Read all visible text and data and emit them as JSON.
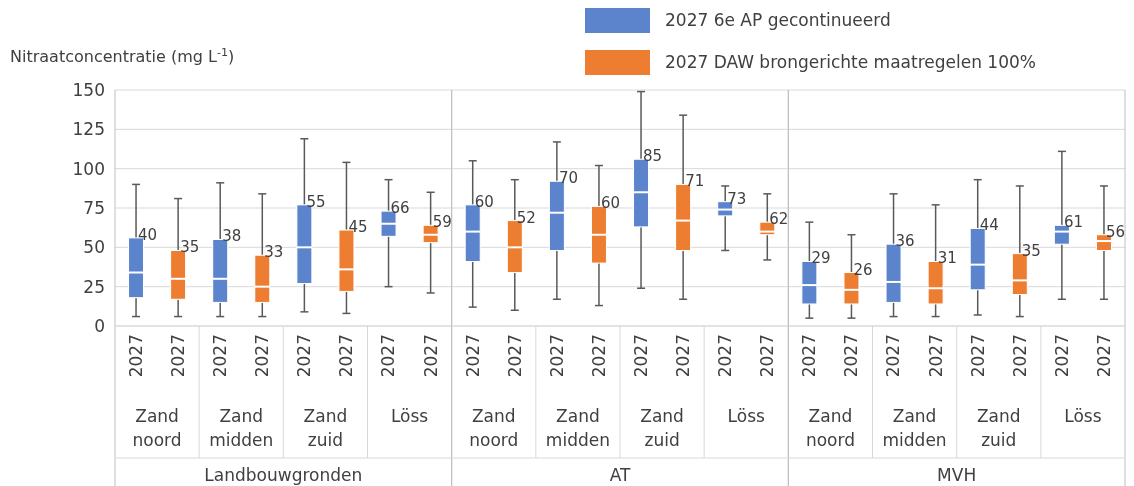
{
  "chart_data": [
    {
      "type": "box",
      "ylabel": "Nitraatconcentratie (mg L$^{-1}$)",
      "xlabel": "Landbouwgronden",
      "categories": [
        "Zand noord",
        "Zand midden",
        "Zand zuid",
        "Löss"
      ],
      "ylim": [
        0,
        150
      ],
      "yticks": [
        0,
        25,
        50,
        75,
        100,
        125,
        150
      ],
      "grid": "y",
      "legend": "top right",
      "annotations": [
        "2027",
        "2027",
        "2027",
        "2027",
        "2027",
        "2027",
        "2027",
        "2027"
      ],
      "series": [
        {
          "name": "2027 6e AP gecontinueerd",
          "color": "#5b84cc",
          "value_labels": [
            "40",
            "38",
            "55",
            "66"
          ],
          "boxes": [
            {
              "low": 6,
              "q1": 18,
              "median": 34,
              "q3": 56,
              "high": 90
            },
            {
              "low": 6,
              "q1": 15,
              "median": 30,
              "q3": 55,
              "high": 91
            },
            {
              "low": 9,
              "q1": 27,
              "median": 50,
              "q3": 77,
              "high": 119
            },
            {
              "low": 25,
              "q1": 57,
              "median": 65,
              "q3": 73,
              "high": 93
            }
          ]
        },
        {
          "name": "2027 DAW brongerichte maatregelen 100%",
          "color": "#ed7d31",
          "value_labels": [
            "35",
            "33",
            "45",
            "59"
          ],
          "boxes": [
            {
              "low": 6,
              "q1": 17,
              "median": 30,
              "q3": 48,
              "high": 81
            },
            {
              "low": 6,
              "q1": 15,
              "median": 25,
              "q3": 45,
              "high": 84
            },
            {
              "low": 8,
              "q1": 22,
              "median": 36,
              "q3": 61,
              "high": 104
            },
            {
              "low": 21,
              "q1": 53,
              "median": 58,
              "q3": 64,
              "high": 85
            }
          ]
        }
      ]
    },
    {
      "type": "box",
      "xlabel": "AT",
      "categories": [
        "Zand noord",
        "Zand midden",
        "Zand zuid",
        "Löss"
      ],
      "ylim": [
        0,
        150
      ],
      "yticks": [
        0,
        25,
        50,
        75,
        100,
        125,
        150
      ],
      "grid": "y",
      "tick_labels": "x",
      "annotations": [
        "2027",
        "2027",
        "2027",
        "2027",
        "2027",
        "2027",
        "2027",
        "2027"
      ],
      "series": [
        {
          "color": "#5b84cc",
          "value_labels": [
            "60",
            "70",
            "85",
            "73"
          ],
          "boxes": [
            {
              "low": 12,
              "q1": 41,
              "median": 60,
              "q3": 77,
              "high": 105
            },
            {
              "low": 17,
              "q1": 48,
              "median": 72,
              "q3": 92,
              "high": 117
            },
            {
              "low": 24,
              "q1": 63,
              "median": 85,
              "q3": 106,
              "high": 149
            },
            {
              "low": 48,
              "q1": 70,
              "median": 74,
              "q3": 79,
              "high": 89
            }
          ]
        },
        {
          "color": "#ed7d31",
          "value_labels": [
            "52",
            "60",
            "71",
            "62"
          ],
          "boxes": [
            {
              "low": 10,
              "q1": 34,
              "median": 50,
              "q3": 67,
              "high": 93
            },
            {
              "low": 13,
              "q1": 40,
              "median": 58,
              "q3": 76,
              "high": 102
            },
            {
              "low": 17,
              "q1": 48,
              "median": 67,
              "q3": 90,
              "high": 134
            },
            {
              "low": 42,
              "q1": 58,
              "median": 60,
              "q3": 66,
              "high": 84
            }
          ]
        }
      ]
    },
    {
      "type": "box",
      "xlabel": "MVH",
      "categories": [
        "Zand noord",
        "Zand midden",
        "Zand zuid",
        "Löss"
      ],
      "ylim": [
        0,
        150
      ],
      "yticks": [
        0,
        25,
        50,
        75,
        100,
        125,
        150
      ],
      "grid": "y",
      "tick_labels": "x",
      "annotations": [
        "2027",
        "2027",
        "2027",
        "2027",
        "2027",
        "2027",
        "2027",
        "2027"
      ],
      "series": [
        {
          "color": "#5b84cc",
          "value_labels": [
            "29",
            "36",
            "44",
            "61"
          ],
          "boxes": [
            {
              "low": 5,
              "q1": 14,
              "median": 26,
              "q3": 41,
              "high": 66
            },
            {
              "low": 6,
              "q1": 15,
              "median": 28,
              "q3": 52,
              "high": 84
            },
            {
              "low": 7,
              "q1": 23,
              "median": 39,
              "q3": 62,
              "high": 93
            },
            {
              "low": 17,
              "q1": 52,
              "median": 60,
              "q3": 64,
              "high": 111
            }
          ]
        },
        {
          "color": "#ed7d31",
          "value_labels": [
            "26",
            "31",
            "35",
            "56"
          ],
          "boxes": [
            {
              "low": 5,
              "q1": 14,
              "median": 23,
              "q3": 34,
              "high": 58
            },
            {
              "low": 6,
              "q1": 14,
              "median": 24,
              "q3": 41,
              "high": 77
            },
            {
              "low": 6,
              "q1": 20,
              "median": 29,
              "q3": 46,
              "high": 89
            },
            {
              "low": 17,
              "q1": 48,
              "median": 54,
              "q3": 58,
              "high": 89
            }
          ]
        }
      ]
    }
  ]
}
